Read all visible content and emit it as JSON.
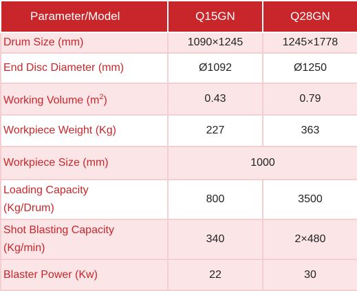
{
  "header": {
    "parameter": "Parameter/Model",
    "model_1": "Q15GN",
    "model_2": "Q28GN"
  },
  "rows": [
    {
      "label": "Drum Size (mm)",
      "v1": "1090×1245",
      "v2": "1245×1778"
    },
    {
      "label": "End Disc Diameter (mm)",
      "v1": "Ø1092",
      "v2": "Ø1250"
    },
    {
      "label_pre": "Working Volume (m",
      "label_sup": "2",
      "label_post": ")",
      "v1": "0.43",
      "v2": "0.79"
    },
    {
      "label": "Workpiece Weight (Kg)",
      "v1": "227",
      "v2": "363"
    },
    {
      "label": "Workpiece Size (mm)",
      "v_merged": "1000"
    },
    {
      "label_l1": "Loading Capacity",
      "label_l2": "(Kg/Drum)",
      "v1": "800",
      "v2": "3500"
    },
    {
      "label_l1": "Shot Blasting Capacity",
      "label_l2": "(Kg/min)",
      "v1": "340",
      "v2": "2×480"
    },
    {
      "label": "Blaster Power (Kw)",
      "v1": "22",
      "v2": "30"
    }
  ],
  "colors": {
    "header_bg": "#c8262a",
    "label_text": "#c8262a",
    "shaded_row_bg": "#fbe5e7",
    "border": "#f4cfd2"
  }
}
